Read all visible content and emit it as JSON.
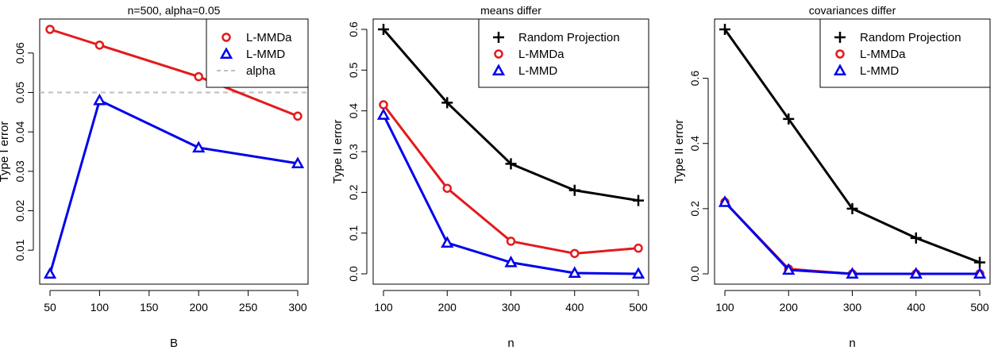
{
  "chart_data": [
    {
      "type": "line",
      "title": "n=500, alpha=0.05",
      "xlabel": "B",
      "ylabel": "Type I error",
      "x": [
        50,
        100,
        200,
        300
      ],
      "xticks": [
        "50",
        "100",
        "150",
        "200",
        "250",
        "300"
      ],
      "yticks": [
        "0.01",
        "0.02",
        "0.03",
        "0.04",
        "0.05",
        "0.06"
      ],
      "xlim": [
        50,
        300
      ],
      "ylim": [
        0.004,
        0.066
      ],
      "series": [
        {
          "name": "L-MMDa",
          "values": [
            0.066,
            0.062,
            0.054,
            0.044
          ],
          "color": "#e31a1c",
          "marker": "circle"
        },
        {
          "name": "L-MMD",
          "values": [
            0.004,
            0.048,
            0.036,
            0.032
          ],
          "color": "#0000ee",
          "marker": "triangle"
        }
      ],
      "reference_lines": [
        {
          "name": "alpha",
          "value": 0.05,
          "color": "#bebebe",
          "style": "dashed"
        }
      ],
      "legend": [
        "L-MMDa",
        "L-MMD",
        "alpha"
      ],
      "legend_position": "top-right",
      "grid": false
    },
    {
      "type": "line",
      "title": "means differ",
      "xlabel": "n",
      "ylabel": "Type II error",
      "x": [
        100,
        200,
        300,
        400,
        500
      ],
      "xticks": [
        "100",
        "200",
        "300",
        "400",
        "500"
      ],
      "yticks": [
        "0.0",
        "0.1",
        "0.2",
        "0.3",
        "0.4",
        "0.5",
        "0.6"
      ],
      "xlim": [
        100,
        500
      ],
      "ylim": [
        0,
        0.6
      ],
      "series": [
        {
          "name": "Random Projection",
          "values": [
            0.6,
            0.42,
            0.27,
            0.205,
            0.18
          ],
          "color": "#000000",
          "marker": "plus"
        },
        {
          "name": "L-MMDa",
          "values": [
            0.415,
            0.21,
            0.08,
            0.05,
            0.063
          ],
          "color": "#e31a1c",
          "marker": "circle"
        },
        {
          "name": "L-MMD",
          "values": [
            0.39,
            0.076,
            0.028,
            0.002,
            0.0
          ],
          "color": "#0000ee",
          "marker": "triangle"
        }
      ],
      "legend": [
        "Random Projection",
        "L-MMDa",
        "L-MMD"
      ],
      "legend_position": "top-right",
      "grid": false
    },
    {
      "type": "line",
      "title": "covariances differ",
      "xlabel": "n",
      "ylabel": "Type II error",
      "x": [
        100,
        200,
        300,
        400,
        500
      ],
      "xticks": [
        "100",
        "200",
        "300",
        "400",
        "500"
      ],
      "yticks": [
        "0.0",
        "0.2",
        "0.4",
        "0.6"
      ],
      "xlim": [
        100,
        500
      ],
      "ylim": [
        0,
        0.75
      ],
      "series": [
        {
          "name": "Random Projection",
          "values": [
            0.75,
            0.475,
            0.2,
            0.11,
            0.035
          ],
          "color": "#000000",
          "marker": "plus"
        },
        {
          "name": "L-MMDa",
          "values": [
            0.22,
            0.015,
            0.0,
            0.0,
            0.0
          ],
          "color": "#e31a1c",
          "marker": "circle"
        },
        {
          "name": "L-MMD",
          "values": [
            0.22,
            0.012,
            0.0,
            0.0,
            0.0
          ],
          "color": "#0000ee",
          "marker": "triangle"
        }
      ],
      "legend": [
        "Random Projection",
        "L-MMDa",
        "L-MMD"
      ],
      "legend_position": "top-right",
      "grid": false
    }
  ]
}
